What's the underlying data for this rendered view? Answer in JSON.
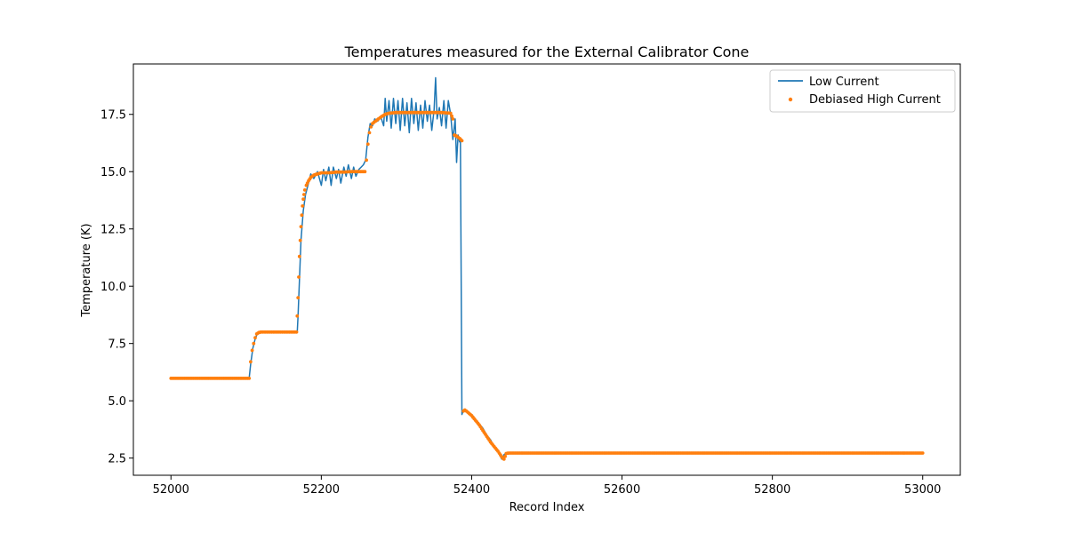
{
  "chart_data": {
    "type": "line",
    "title": "Temperatures measured for the External Calibrator Cone",
    "xlabel": "Record Index",
    "ylabel": "Temperature (K)",
    "xlim": [
      51950,
      53050
    ],
    "ylim": [
      1.75,
      19.7
    ],
    "xticks": [
      52000,
      52200,
      52400,
      52600,
      52800,
      53000
    ],
    "yticks": [
      2.5,
      5.0,
      7.5,
      10.0,
      12.5,
      15.0,
      17.5
    ],
    "ytick_labels": [
      "2.5",
      "5.0",
      "7.5",
      "10.0",
      "12.5",
      "15.0",
      "17.5"
    ],
    "grid": false,
    "legend": "top-right",
    "series": [
      {
        "name": "Low Current",
        "style": "line",
        "color": "#1f77b4",
        "x": [
          52000,
          52104,
          52106,
          52109,
          52112,
          52115,
          52120,
          52150,
          52168,
          52169,
          52171,
          52173,
          52176,
          52179,
          52183,
          52186,
          52190,
          52195,
          52200,
          52203,
          52206,
          52210,
          52213,
          52216,
          52220,
          52223,
          52226,
          52230,
          52233,
          52236,
          52240,
          52243,
          52246,
          52250,
          52253,
          52256,
          52259,
          52262,
          52265,
          52268,
          52271,
          52275,
          52279,
          52283,
          52285,
          52287,
          52290,
          52293,
          52296,
          52299,
          52302,
          52305,
          52308,
          52311,
          52314,
          52317,
          52320,
          52323,
          52326,
          52329,
          52332,
          52335,
          52338,
          52341,
          52344,
          52347,
          52350,
          52352,
          52354,
          52357,
          52360,
          52363,
          52366,
          52369,
          52372,
          52375,
          52378,
          52380,
          52382,
          52384,
          52385,
          52387,
          52389,
          52391,
          52395,
          52400,
          52405,
          52410,
          52415,
          52420,
          52425,
          52430,
          52435,
          52440,
          52443,
          52446,
          52450,
          52500,
          52600,
          52700,
          52800,
          52900,
          53000
        ],
        "y": [
          5.98,
          5.98,
          6.6,
          7.3,
          7.7,
          7.95,
          8.0,
          8.0,
          8.0,
          8.7,
          10.3,
          12.0,
          13.3,
          14.0,
          14.5,
          14.9,
          14.7,
          15.0,
          14.4,
          15.1,
          14.6,
          15.2,
          14.4,
          15.2,
          14.7,
          15.1,
          14.5,
          15.2,
          14.8,
          15.3,
          14.7,
          15.2,
          14.8,
          15.1,
          15.2,
          15.3,
          15.5,
          16.5,
          17.1,
          17.0,
          17.3,
          17.2,
          17.4,
          17.0,
          18.2,
          17.2,
          18.1,
          16.9,
          18.2,
          17.1,
          18.1,
          16.8,
          18.2,
          17.0,
          18.0,
          16.7,
          18.2,
          17.1,
          18.0,
          16.8,
          17.9,
          16.9,
          18.1,
          17.2,
          17.9,
          16.8,
          17.7,
          19.1,
          17.3,
          17.8,
          17.0,
          18.1,
          16.9,
          18.1,
          17.5,
          16.4,
          17.3,
          15.4,
          16.6,
          16.3,
          16.4,
          4.4,
          4.6,
          4.6,
          4.5,
          4.4,
          4.2,
          4.0,
          3.8,
          3.5,
          3.3,
          3.0,
          2.8,
          2.45,
          2.65,
          2.72,
          2.72,
          2.72,
          2.72,
          2.72,
          2.72,
          2.72,
          2.72
        ]
      },
      {
        "name": "Debiased High Current",
        "style": "scatter",
        "color": "#ff7f0e",
        "x": [
          52000,
          52104,
          52106,
          52108,
          52110,
          52112,
          52114,
          52117,
          52120,
          52150,
          52167,
          52168,
          52169,
          52170,
          52171,
          52172,
          52173,
          52174,
          52175,
          52176,
          52177,
          52178,
          52180,
          52183,
          52186,
          52190,
          52195,
          52200,
          52210,
          52220,
          52230,
          52240,
          52250,
          52258,
          52260,
          52262,
          52264,
          52266,
          52268,
          52272,
          52276,
          52280,
          52285,
          52290,
          52300,
          52320,
          52340,
          52360,
          52372,
          52375,
          52377,
          52380,
          52384,
          52387,
          52389,
          52391,
          52395,
          52400,
          52405,
          52410,
          52415,
          52420,
          52425,
          52430,
          52435,
          52440,
          52443,
          52446,
          52450,
          52500,
          52600,
          52700,
          52800,
          52900,
          53000
        ],
        "y": [
          5.98,
          5.98,
          6.7,
          7.2,
          7.5,
          7.75,
          7.92,
          7.98,
          8.0,
          8.0,
          8.0,
          8.7,
          9.5,
          10.4,
          11.3,
          12.0,
          12.6,
          13.1,
          13.5,
          13.8,
          14.0,
          14.2,
          14.4,
          14.6,
          14.75,
          14.85,
          14.9,
          14.95,
          14.95,
          14.98,
          14.98,
          15.0,
          15.0,
          15.0,
          15.5,
          16.2,
          16.7,
          16.95,
          17.1,
          17.2,
          17.3,
          17.4,
          17.5,
          17.55,
          17.58,
          17.58,
          17.58,
          17.58,
          17.55,
          17.3,
          16.6,
          16.55,
          16.45,
          16.35,
          4.55,
          4.6,
          4.5,
          4.35,
          4.15,
          3.95,
          3.7,
          3.45,
          3.2,
          3.0,
          2.8,
          2.55,
          2.45,
          2.7,
          2.72,
          2.72,
          2.72,
          2.72,
          2.72,
          2.72,
          2.72
        ]
      }
    ]
  }
}
